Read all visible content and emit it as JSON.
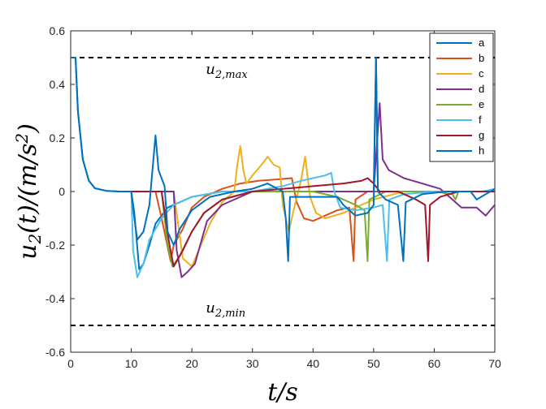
{
  "chart_data": {
    "type": "line",
    "title": "",
    "xlabel": "t/s",
    "ylabel": "u2(t)/(m/s^2)",
    "xlim": [
      0,
      70
    ],
    "ylim": [
      -0.6,
      0.6
    ],
    "xticks": [
      0,
      10,
      20,
      30,
      40,
      50,
      60,
      70
    ],
    "yticks": [
      -0.6,
      -0.4,
      -0.2,
      0,
      0.2,
      0.4,
      0.6
    ],
    "ytick_labels": [
      "-0.6",
      "-0.4",
      "-0.2",
      "0",
      "0.2",
      "0.4",
      "0.6"
    ],
    "grid": false,
    "legend_position": "top-right",
    "limits": [
      {
        "name": "u2_max",
        "value": 0.5,
        "label_base": "u",
        "label_sub": "2,max"
      },
      {
        "name": "u2_min",
        "value": -0.5,
        "label_base": "u",
        "label_sub": "2,min"
      }
    ],
    "series": [
      {
        "name": "a",
        "color": "#0072BD",
        "points": [
          [
            0,
            0.5
          ],
          [
            0.8,
            0.5
          ],
          [
            1.2,
            0.3
          ],
          [
            2,
            0.12
          ],
          [
            3,
            0.04
          ],
          [
            4,
            0.012
          ],
          [
            6,
            0.002
          ],
          [
            8,
            0
          ],
          [
            10,
            0
          ],
          [
            10.5,
            -0.08
          ],
          [
            11.3,
            -0.29
          ],
          [
            12,
            -0.27
          ],
          [
            13,
            -0.2
          ],
          [
            14,
            -0.12
          ],
          [
            16,
            -0.06
          ],
          [
            20,
            -0.02
          ],
          [
            25,
            0
          ],
          [
            30,
            0
          ],
          [
            35,
            0
          ],
          [
            40,
            0
          ],
          [
            45,
            0
          ],
          [
            50,
            0
          ],
          [
            50.4,
            0.5
          ],
          [
            50.7,
            0
          ],
          [
            55,
            0
          ],
          [
            60,
            0
          ],
          [
            70,
            0
          ]
        ]
      },
      {
        "name": "b",
        "color": "#D95319",
        "points": [
          [
            10,
            0
          ],
          [
            14,
            0
          ],
          [
            15,
            -0.1
          ],
          [
            16.5,
            -0.26
          ],
          [
            17,
            -0.2
          ],
          [
            18.5,
            -0.14
          ],
          [
            20,
            -0.06
          ],
          [
            22,
            -0.02
          ],
          [
            25,
            0.01
          ],
          [
            28,
            0.03
          ],
          [
            31,
            0.04
          ],
          [
            34,
            0.045
          ],
          [
            36.5,
            0.05
          ],
          [
            37.3,
            -0.04
          ],
          [
            38.5,
            -0.1
          ],
          [
            40,
            -0.11
          ],
          [
            42,
            -0.09
          ],
          [
            44,
            -0.07
          ],
          [
            46,
            -0.06
          ],
          [
            46.7,
            -0.26
          ],
          [
            47,
            -0.03
          ],
          [
            49,
            0
          ],
          [
            52,
            0
          ],
          [
            56,
            0
          ],
          [
            60,
            0
          ],
          [
            70,
            0
          ]
        ]
      },
      {
        "name": "c",
        "color": "#EDB120",
        "points": [
          [
            10,
            0
          ],
          [
            17,
            0
          ],
          [
            18.5,
            -0.25
          ],
          [
            20,
            -0.28
          ],
          [
            21.5,
            -0.2
          ],
          [
            23,
            -0.12
          ],
          [
            25,
            -0.04
          ],
          [
            27,
            0
          ],
          [
            27.5,
            0.1
          ],
          [
            28,
            0.17
          ],
          [
            28.5,
            0.08
          ],
          [
            29,
            0.03
          ],
          [
            30,
            0.06
          ],
          [
            31.5,
            0.1
          ],
          [
            32.5,
            0.13
          ],
          [
            33.5,
            0.1
          ],
          [
            34.5,
            0.09
          ],
          [
            35,
            -0.05
          ],
          [
            36,
            -0.15
          ],
          [
            37,
            -0.05
          ],
          [
            38,
            0.04
          ],
          [
            38.7,
            0.13
          ],
          [
            39.5,
            -0.02
          ],
          [
            40.5,
            -0.08
          ],
          [
            42,
            -0.1
          ],
          [
            45,
            -0.08
          ],
          [
            48,
            -0.05
          ],
          [
            50,
            -0.03
          ],
          [
            55,
            0
          ],
          [
            60,
            0
          ],
          [
            70,
            0
          ]
        ]
      },
      {
        "name": "d",
        "color": "#7E2F8E",
        "points": [
          [
            10,
            0
          ],
          [
            17,
            0
          ],
          [
            17.5,
            -0.22
          ],
          [
            18.3,
            -0.32
          ],
          [
            19.3,
            -0.3
          ],
          [
            20.5,
            -0.27
          ],
          [
            21,
            -0.23
          ],
          [
            22.5,
            -0.11
          ],
          [
            25,
            -0.05
          ],
          [
            30,
            0
          ],
          [
            40,
            0
          ],
          [
            50,
            0
          ],
          [
            51,
            0.33
          ],
          [
            51.5,
            0.12
          ],
          [
            52.5,
            0.08
          ],
          [
            55,
            0.05
          ],
          [
            58,
            0.03
          ],
          [
            61,
            0.01
          ],
          [
            63,
            -0.03
          ],
          [
            64.5,
            -0.06
          ],
          [
            67,
            -0.06
          ],
          [
            68.5,
            -0.09
          ],
          [
            70,
            -0.05
          ]
        ]
      },
      {
        "name": "e",
        "color": "#77AC30",
        "points": [
          [
            10,
            0
          ],
          [
            15,
            0
          ],
          [
            16,
            -0.2
          ],
          [
            16.8,
            -0.28
          ],
          [
            18,
            -0.24
          ],
          [
            20,
            -0.15
          ],
          [
            22,
            -0.08
          ],
          [
            25,
            -0.03
          ],
          [
            30,
            0
          ],
          [
            35,
            0
          ],
          [
            40,
            0
          ],
          [
            44,
            -0.02
          ],
          [
            47,
            -0.05
          ],
          [
            48.5,
            -0.07
          ],
          [
            49,
            -0.26
          ],
          [
            49.3,
            -0.03
          ],
          [
            52,
            0
          ],
          [
            55,
            0
          ],
          [
            60,
            0
          ],
          [
            63,
            -0.01
          ],
          [
            63.5,
            -0.03
          ],
          [
            64,
            0
          ],
          [
            70,
            0
          ]
        ]
      },
      {
        "name": "f",
        "color": "#4DBEEE",
        "points": [
          [
            10,
            0
          ],
          [
            10.3,
            -0.22
          ],
          [
            11,
            -0.32
          ],
          [
            12,
            -0.27
          ],
          [
            13,
            -0.18
          ],
          [
            15,
            -0.1
          ],
          [
            17,
            -0.05
          ],
          [
            20,
            -0.02
          ],
          [
            25,
            0
          ],
          [
            30,
            0
          ],
          [
            35,
            0.02
          ],
          [
            38,
            0.04
          ],
          [
            40,
            0.05
          ],
          [
            42,
            0.06
          ],
          [
            43,
            0.07
          ],
          [
            43.5,
            0
          ],
          [
            44.5,
            -0.06
          ],
          [
            47,
            -0.07
          ],
          [
            50,
            -0.06
          ],
          [
            51.5,
            -0.05
          ],
          [
            52.2,
            -0.26
          ],
          [
            52.6,
            -0.03
          ],
          [
            55,
            -0.01
          ],
          [
            60,
            0
          ],
          [
            68,
            0
          ],
          [
            70,
            0.01
          ]
        ]
      },
      {
        "name": "g",
        "color": "#A2142F",
        "points": [
          [
            10,
            0
          ],
          [
            15,
            0
          ],
          [
            16.3,
            -0.2
          ],
          [
            17,
            -0.28
          ],
          [
            18.5,
            -0.22
          ],
          [
            20,
            -0.15
          ],
          [
            22,
            -0.08
          ],
          [
            25,
            -0.03
          ],
          [
            30,
            0
          ],
          [
            35,
            0.01
          ],
          [
            40,
            0.02
          ],
          [
            45,
            0.03
          ],
          [
            48,
            0.04
          ],
          [
            49,
            0.05
          ],
          [
            50,
            0.03
          ],
          [
            51,
            0
          ],
          [
            54,
            0
          ],
          [
            57,
            -0.03
          ],
          [
            58.5,
            -0.05
          ],
          [
            59,
            -0.26
          ],
          [
            59.3,
            -0.05
          ],
          [
            61,
            -0.02
          ],
          [
            64,
            0
          ],
          [
            70,
            0
          ]
        ]
      },
      {
        "name": "h",
        "color": "#0072BD",
        "points": [
          [
            0,
            0.5
          ],
          [
            0.8,
            0.5
          ],
          [
            1.2,
            0.3
          ],
          [
            2,
            0.12
          ],
          [
            3,
            0.04
          ],
          [
            4,
            0.012
          ],
          [
            6,
            0.002
          ],
          [
            8,
            0
          ],
          [
            10,
            0
          ],
          [
            10.5,
            -0.1
          ],
          [
            11,
            -0.18
          ],
          [
            12,
            -0.15
          ],
          [
            13,
            -0.05
          ],
          [
            14,
            0.21
          ],
          [
            14.5,
            0.08
          ],
          [
            15.5,
            0.02
          ],
          [
            16,
            -0.15
          ],
          [
            17,
            -0.2
          ],
          [
            18,
            -0.14
          ],
          [
            20,
            -0.07
          ],
          [
            23,
            -0.02
          ],
          [
            27,
            0
          ],
          [
            30,
            0.01
          ],
          [
            32.5,
            0.03
          ],
          [
            35,
            0
          ],
          [
            35.5,
            -0.1
          ],
          [
            35.9,
            -0.26
          ],
          [
            36.2,
            -0.02
          ],
          [
            38,
            -0.02
          ],
          [
            41,
            -0.02
          ],
          [
            44,
            -0.02
          ],
          [
            45,
            -0.05
          ],
          [
            47,
            -0.09
          ],
          [
            49,
            -0.08
          ],
          [
            50,
            -0.05
          ],
          [
            50.4,
            0.5
          ],
          [
            50.7,
            0
          ],
          [
            52,
            -0.03
          ],
          [
            54,
            -0.05
          ],
          [
            54.9,
            -0.26
          ],
          [
            55.3,
            -0.04
          ],
          [
            58,
            -0.01
          ],
          [
            62,
            0
          ],
          [
            66,
            0
          ],
          [
            67,
            -0.03
          ],
          [
            70,
            0.01
          ]
        ]
      }
    ]
  }
}
